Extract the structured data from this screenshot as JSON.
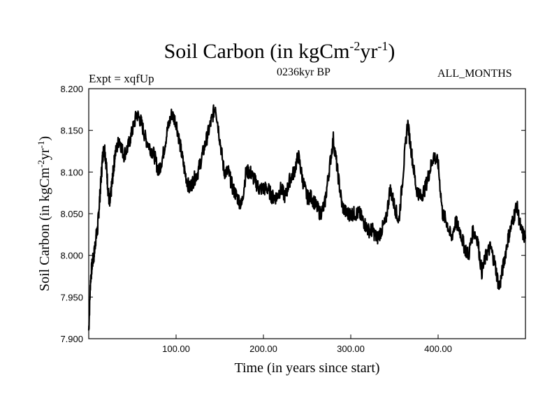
{
  "chart_data": {
    "type": "line",
    "title": "Soil Carbon (in kgCm",
    "title_sup1": "-2",
    "title_mid": "yr",
    "title_sup2": "-1",
    "title_end": ")",
    "expt": "Expt = xqfUp",
    "period": "0236kyr BP",
    "months": "ALL_MONTHS",
    "xlabel": "Time (in years since start)",
    "ylabel": "Soil Carbon (in kgCm",
    "ylabel_sup1": "-2",
    "ylabel_mid": "yr",
    "ylabel_sup2": "-1",
    "ylabel_end": ")",
    "xlim": [
      0,
      500
    ],
    "ylim": [
      7.9,
      8.2
    ],
    "x_ticks": [
      100,
      200,
      300,
      400
    ],
    "x_tick_labels": [
      "100.00",
      "200.00",
      "300.00",
      "400.00"
    ],
    "y_ticks": [
      7.9,
      7.95,
      8.0,
      8.05,
      8.1,
      8.15,
      8.2
    ],
    "y_tick_labels": [
      "7.900",
      "7.950",
      "8.000",
      "8.050",
      "8.100",
      "8.150",
      "8.200"
    ],
    "series": [
      {
        "name": "Soil Carbon",
        "x": [
          0,
          2,
          4,
          6,
          8,
          10,
          12,
          14,
          16,
          18,
          20,
          22,
          24,
          26,
          28,
          30,
          35,
          40,
          45,
          50,
          55,
          60,
          65,
          70,
          75,
          80,
          85,
          90,
          95,
          100,
          105,
          110,
          115,
          120,
          125,
          130,
          135,
          140,
          145,
          150,
          155,
          160,
          165,
          170,
          175,
          180,
          185,
          190,
          195,
          200,
          205,
          210,
          215,
          220,
          225,
          230,
          235,
          240,
          245,
          250,
          255,
          260,
          265,
          270,
          275,
          280,
          285,
          290,
          295,
          300,
          305,
          310,
          315,
          320,
          325,
          330,
          335,
          340,
          345,
          350,
          355,
          360,
          365,
          370,
          375,
          380,
          385,
          390,
          395,
          400,
          405,
          410,
          415,
          420,
          425,
          430,
          435,
          440,
          445,
          450,
          455,
          460,
          465,
          470,
          475,
          480,
          485,
          490,
          495,
          500
        ],
        "values": [
          7.91,
          7.97,
          7.99,
          8.0,
          8.02,
          8.03,
          8.06,
          8.09,
          8.12,
          8.13,
          8.11,
          8.08,
          8.06,
          8.08,
          8.1,
          8.12,
          8.14,
          8.12,
          8.13,
          8.15,
          8.17,
          8.16,
          8.14,
          8.13,
          8.12,
          8.1,
          8.12,
          8.15,
          8.17,
          8.16,
          8.13,
          8.1,
          8.08,
          8.09,
          8.1,
          8.12,
          8.14,
          8.16,
          8.18,
          8.14,
          8.1,
          8.1,
          8.08,
          8.07,
          8.06,
          8.1,
          8.1,
          8.09,
          8.08,
          8.08,
          8.08,
          8.07,
          8.07,
          8.08,
          8.07,
          8.09,
          8.1,
          8.12,
          8.09,
          8.07,
          8.07,
          8.06,
          8.05,
          8.06,
          8.1,
          8.14,
          8.1,
          8.06,
          8.05,
          8.05,
          8.05,
          8.05,
          8.04,
          8.03,
          8.03,
          8.02,
          8.03,
          8.04,
          8.08,
          8.06,
          8.04,
          8.1,
          8.16,
          8.12,
          8.08,
          8.07,
          8.08,
          8.1,
          8.12,
          8.11,
          8.05,
          8.04,
          8.02,
          8.04,
          8.03,
          8.01,
          8.0,
          8.03,
          8.02,
          7.98,
          8.0,
          8.01,
          7.99,
          7.96,
          7.99,
          8.02,
          8.04,
          8.06,
          8.03,
          8.02
        ]
      }
    ]
  }
}
